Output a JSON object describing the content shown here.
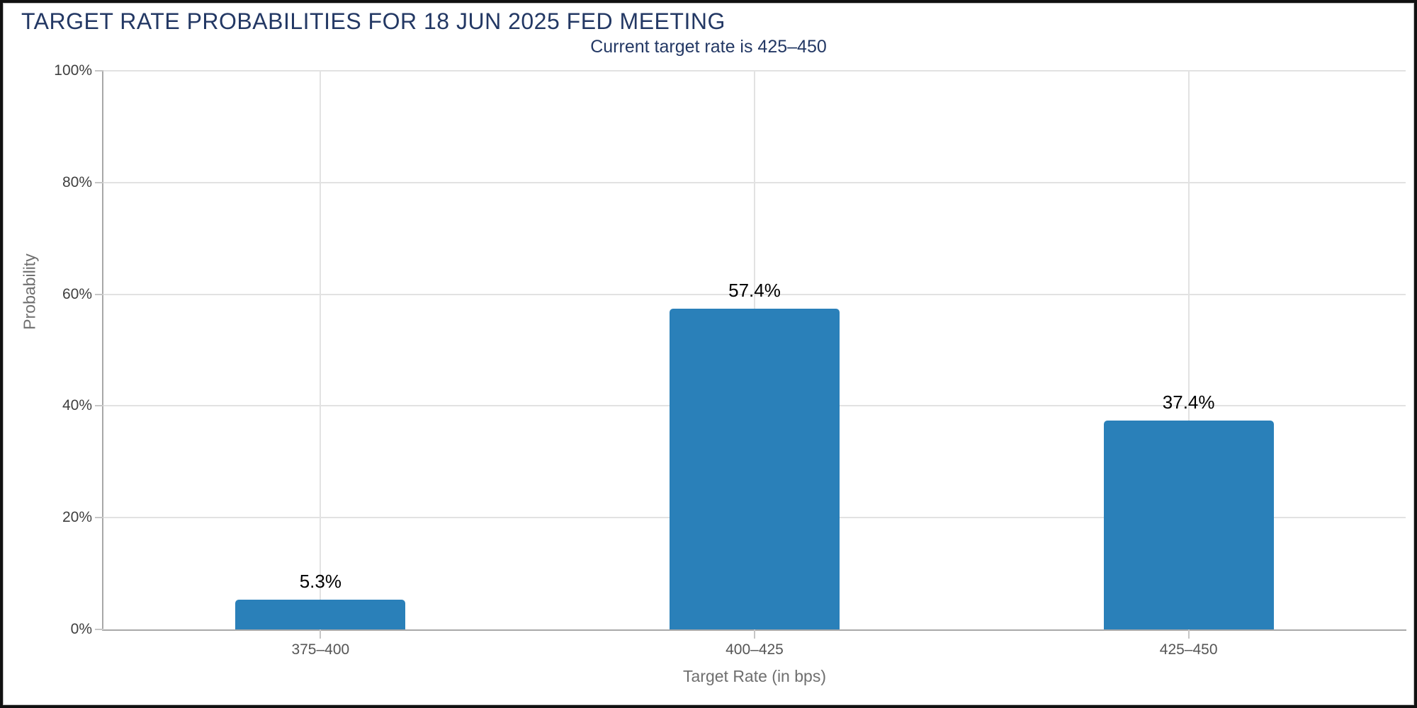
{
  "header": {
    "title": "TARGET RATE PROBABILITIES FOR 18 JUN 2025 FED MEETING",
    "subtitle": "Current target rate is 425–450"
  },
  "chart_data": {
    "type": "bar",
    "title": "TARGET RATE PROBABILITIES FOR 18 JUN 2025 FED MEETING",
    "subtitle": "Current target rate is 425–450",
    "categories": [
      "375–400",
      "400–425",
      "425–450"
    ],
    "values": [
      5.3,
      57.4,
      37.4
    ],
    "value_labels": [
      "5.3%",
      "57.4%",
      "37.4%"
    ],
    "xlabel": "Target Rate (in bps)",
    "ylabel": "Probability",
    "ylim": [
      0,
      100
    ],
    "yticks": [
      0,
      20,
      40,
      60,
      80,
      100
    ],
    "ytick_labels": [
      "0%",
      "20%",
      "40%",
      "60%",
      "80%",
      "100%"
    ],
    "grid": true,
    "legend": "none",
    "colors": {
      "bar": "#2a80b9",
      "title_text": "#233864",
      "value_label": "#000000",
      "axis_line": "#a8a8a8",
      "gridline": "#e2e2e2",
      "tick_mark": "#c6c6c6",
      "ytick_label": "#3f3f3f",
      "category_label": "#555555",
      "axis_title": "#6f6f6f"
    }
  }
}
